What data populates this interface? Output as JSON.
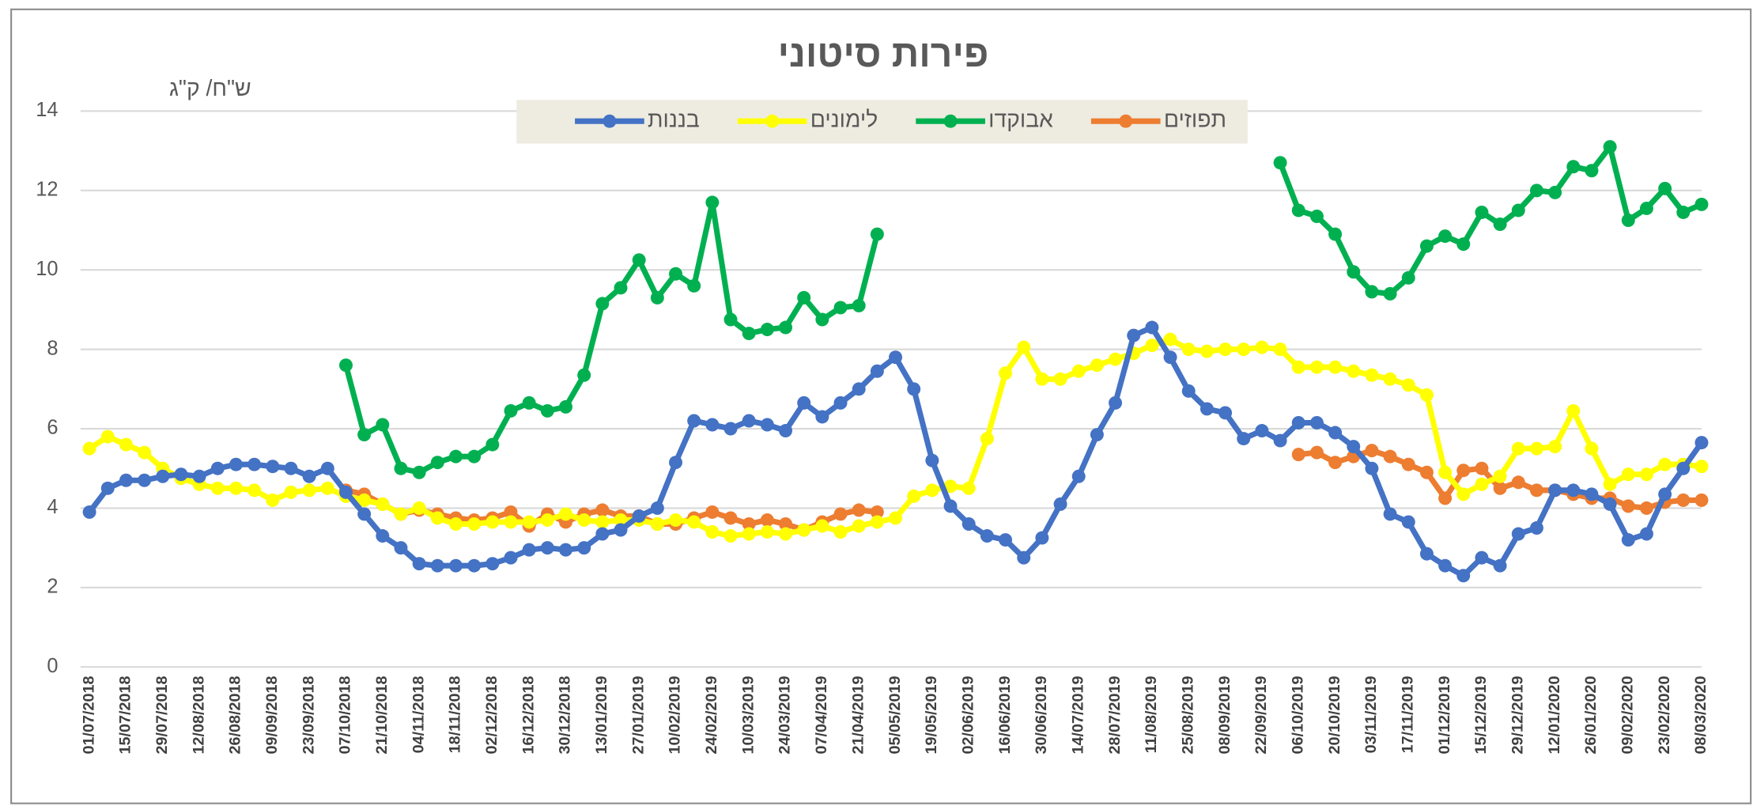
{
  "chart_data": {
    "type": "line",
    "title": "פירות סיטוני",
    "y_label": "ש\"ח/ ק\"ג",
    "categories": [
      "01/07/2018",
      null,
      "15/07/2018",
      null,
      "29/07/2018",
      null,
      "12/08/2018",
      null,
      "26/08/2018",
      null,
      "09/09/2018",
      null,
      "23/09/2018",
      null,
      "07/10/2018",
      null,
      "21/10/2018",
      null,
      "04/11/2018",
      null,
      "18/11/2018",
      null,
      "02/12/2018",
      null,
      "16/12/2018",
      null,
      "30/12/2018",
      null,
      "13/01/2019",
      null,
      "27/01/2019",
      null,
      "10/02/2019",
      null,
      "24/02/2019",
      null,
      "10/03/2019",
      null,
      "24/03/2019",
      null,
      "07/04/2019",
      null,
      "21/04/2019",
      null,
      "05/05/2019",
      null,
      "19/05/2019",
      null,
      "02/06/2019",
      null,
      "16/06/2019",
      null,
      "30/06/2019",
      null,
      "14/07/2019",
      null,
      "28/07/2019",
      null,
      "11/08/2019",
      null,
      "25/08/2019",
      null,
      "08/09/2019",
      null,
      "22/09/2019",
      null,
      "06/10/2019",
      null,
      "20/10/2019",
      null,
      "03/11/2019",
      null,
      "17/11/2019",
      null,
      "01/12/2019",
      null,
      "15/12/2019",
      null,
      "29/12/2019",
      null,
      "12/01/2020",
      null,
      "26/01/2020",
      null,
      "09/02/2020",
      null,
      "23/02/2020",
      null,
      "08/03/2020"
    ],
    "series": [
      {
        "name": "תפוזים",
        "color": "#ed7d31",
        "values": [
          null,
          null,
          null,
          null,
          null,
          null,
          null,
          null,
          null,
          null,
          null,
          null,
          null,
          null,
          4.45,
          4.35,
          4.1,
          3.85,
          3.95,
          3.85,
          3.75,
          3.7,
          3.75,
          3.9,
          3.55,
          3.85,
          3.65,
          3.85,
          3.95,
          3.8,
          3.8,
          3.6,
          3.6,
          3.75,
          3.9,
          3.75,
          3.6,
          3.7,
          3.6,
          3.45,
          3.65,
          3.85,
          3.95,
          3.9,
          null,
          null,
          null,
          null,
          null,
          null,
          null,
          null,
          null,
          null,
          null,
          null,
          null,
          null,
          null,
          null,
          null,
          null,
          null,
          null,
          null,
          null,
          5.35,
          5.4,
          5.15,
          5.3,
          5.45,
          5.3,
          5.1,
          4.9,
          4.25,
          4.95,
          5.0,
          4.5,
          4.65,
          4.45,
          4.45,
          4.35,
          4.25,
          4.25,
          4.05,
          4.0,
          4.15,
          4.2,
          4.2
        ]
      },
      {
        "name": "אבוקדו",
        "color": "#00b050",
        "values": [
          null,
          null,
          null,
          null,
          null,
          null,
          null,
          null,
          null,
          null,
          null,
          null,
          null,
          null,
          7.6,
          5.85,
          6.1,
          5.0,
          4.9,
          5.15,
          5.3,
          5.3,
          5.6,
          6.45,
          6.65,
          6.45,
          6.55,
          7.35,
          9.15,
          9.55,
          10.25,
          9.3,
          9.9,
          9.6,
          11.7,
          8.75,
          8.4,
          8.5,
          8.55,
          9.3,
          8.75,
          9.05,
          9.1,
          10.9,
          null,
          null,
          null,
          null,
          null,
          null,
          null,
          null,
          null,
          null,
          null,
          null,
          null,
          null,
          null,
          null,
          null,
          null,
          null,
          null,
          null,
          12.7,
          11.5,
          11.35,
          10.9,
          9.95,
          9.45,
          9.4,
          9.8,
          10.6,
          10.85,
          10.65,
          11.45,
          11.15,
          11.5,
          12.0,
          11.95,
          12.6,
          12.5,
          13.1,
          11.25,
          11.55,
          12.05,
          11.45,
          11.65
        ]
      },
      {
        "name": "לימונים",
        "color": "#ffff00",
        "values": [
          5.5,
          5.8,
          5.6,
          5.4,
          5.0,
          4.75,
          4.6,
          4.5,
          4.5,
          4.45,
          4.2,
          4.4,
          4.45,
          4.5,
          4.3,
          4.2,
          4.1,
          3.85,
          4.0,
          3.75,
          3.6,
          3.6,
          3.65,
          3.65,
          3.65,
          3.7,
          3.85,
          3.7,
          3.65,
          3.7,
          3.7,
          3.6,
          3.7,
          3.65,
          3.4,
          3.3,
          3.35,
          3.4,
          3.35,
          3.45,
          3.55,
          3.4,
          3.55,
          3.65,
          3.75,
          4.3,
          4.45,
          4.55,
          4.5,
          5.75,
          7.4,
          8.05,
          7.25,
          7.25,
          7.45,
          7.6,
          7.75,
          7.9,
          8.1,
          8.25,
          8.0,
          7.95,
          8.0,
          8.0,
          8.05,
          8.0,
          7.55,
          7.55,
          7.55,
          7.45,
          7.35,
          7.25,
          7.1,
          6.85,
          4.9,
          4.35,
          4.6,
          4.8,
          5.5,
          5.5,
          5.55,
          6.45,
          5.5,
          4.6,
          4.85,
          4.85,
          5.1,
          5.1,
          5.05
        ]
      },
      {
        "name": "בננות",
        "color": "#4472c4",
        "values": [
          3.9,
          4.5,
          4.7,
          4.7,
          4.8,
          4.85,
          4.8,
          5.0,
          5.1,
          5.1,
          5.05,
          5.0,
          4.8,
          5.0,
          4.4,
          3.85,
          3.3,
          3.0,
          2.6,
          2.55,
          2.55,
          2.55,
          2.6,
          2.75,
          2.95,
          3.0,
          2.95,
          3.0,
          3.35,
          3.45,
          3.8,
          4.0,
          5.15,
          6.2,
          6.1,
          6.0,
          6.2,
          6.1,
          5.95,
          6.65,
          6.3,
          6.65,
          7.0,
          7.45,
          7.8,
          7.0,
          5.2,
          4.05,
          3.6,
          3.3,
          3.2,
          2.75,
          3.25,
          4.1,
          4.8,
          5.85,
          6.65,
          8.35,
          8.55,
          7.8,
          6.95,
          6.5,
          6.4,
          5.75,
          5.95,
          5.7,
          6.15,
          6.15,
          5.9,
          5.55,
          5.0,
          3.85,
          3.65,
          2.85,
          2.55,
          2.3,
          2.75,
          2.55,
          3.35,
          3.5,
          4.45,
          4.45,
          4.35,
          4.1,
          3.2,
          3.35,
          4.35,
          5.0,
          5.65
        ]
      }
    ],
    "ylim": [
      0,
      14
    ],
    "yticks": [
      0,
      2,
      4,
      6,
      8,
      10,
      12,
      14
    ],
    "grid": true,
    "legend": "top"
  }
}
